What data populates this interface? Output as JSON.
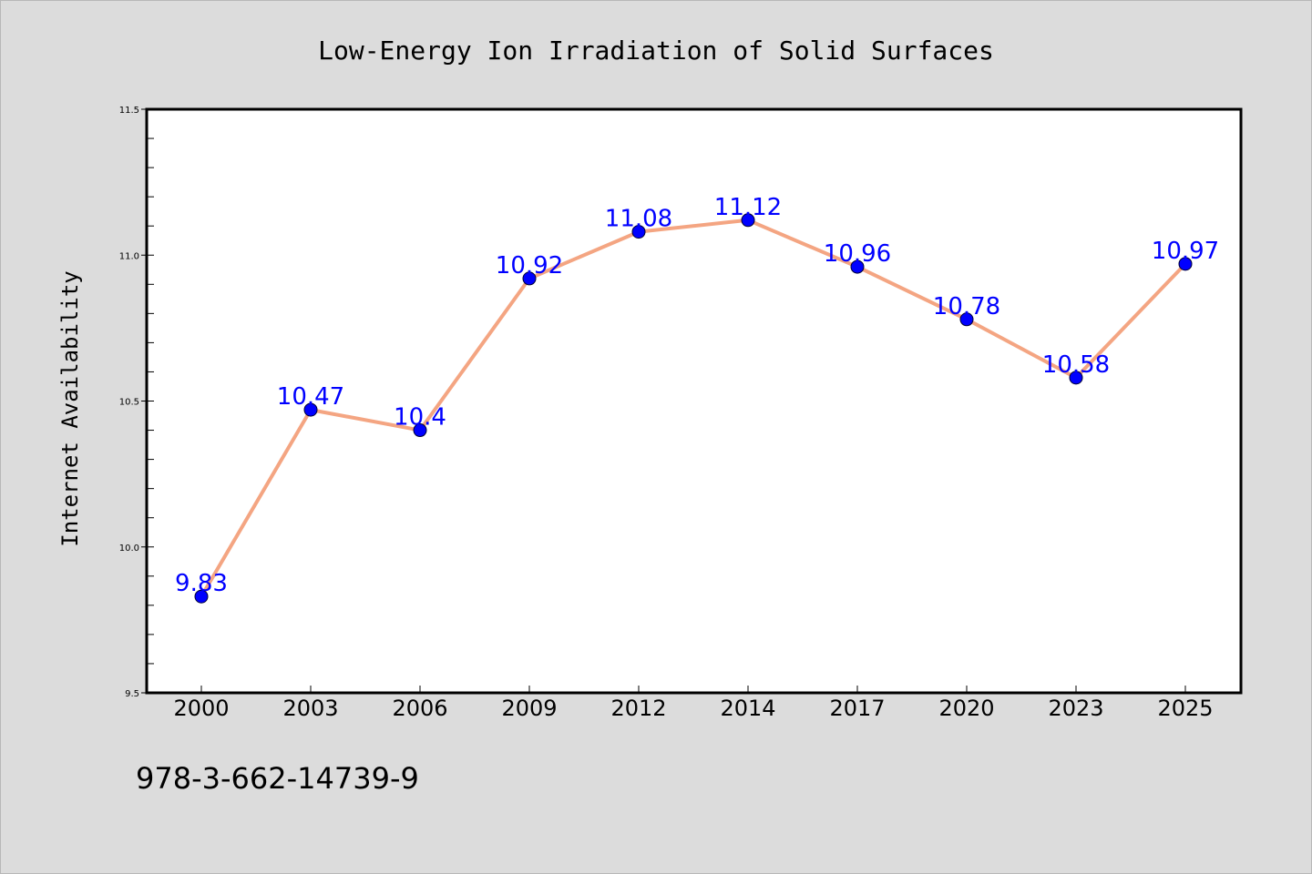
{
  "colors": {
    "background": "#dcdcdc",
    "plot_area": "#ffffff",
    "line": "#f4a582",
    "marker": "#0000ff",
    "data_label": "#0000ff"
  },
  "footer": {
    "isbn": "978-3-662-14739-9"
  },
  "chart_data": {
    "type": "line",
    "title": "Low-Energy Ion Irradiation of Solid Surfaces",
    "xlabel": "",
    "ylabel": "Internet Availability",
    "categories": [
      "2000",
      "2003",
      "2006",
      "2009",
      "2012",
      "2014",
      "2017",
      "2020",
      "2023",
      "2025"
    ],
    "series": [
      {
        "values": [
          9.83,
          10.47,
          10.4,
          10.92,
          11.08,
          11.12,
          10.96,
          10.78,
          10.58,
          10.97
        ],
        "labels": [
          "9.83",
          "10.47",
          "10.4",
          "10.92",
          "11.08",
          "11.12",
          "10.96",
          "10.78",
          "10.58",
          "10.97"
        ]
      }
    ],
    "ylim": [
      9.5,
      11.5
    ],
    "yticks": [
      "9.5",
      "10.0",
      "10.5",
      "11.0",
      "11.5"
    ],
    "grid": false,
    "legend": "none",
    "marker": "circle"
  }
}
